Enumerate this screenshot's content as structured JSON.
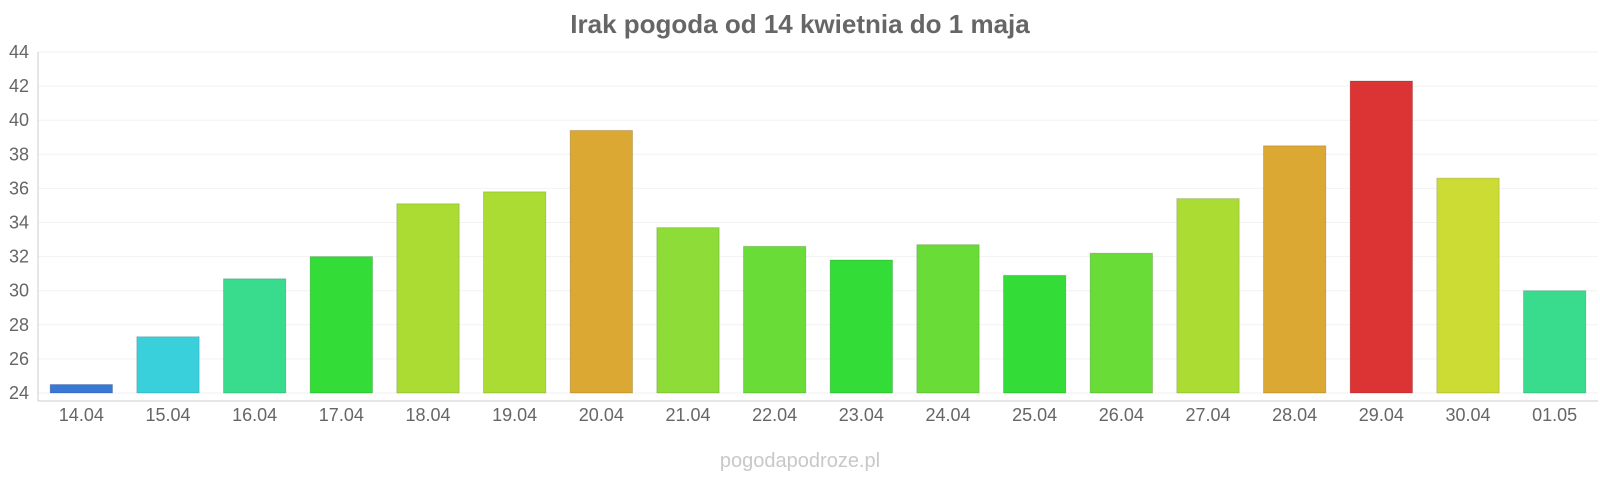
{
  "chart_data": {
    "type": "bar",
    "title": "Irak pogoda od 14 kwietnia do 1 maja",
    "xlabel": "",
    "ylabel": "",
    "categories": [
      "14.04",
      "15.04",
      "16.04",
      "17.04",
      "18.04",
      "19.04",
      "20.04",
      "21.04",
      "22.04",
      "23.04",
      "24.04",
      "25.04",
      "26.04",
      "27.04",
      "28.04",
      "29.04",
      "30.04",
      "01.05"
    ],
    "values": [
      24.5,
      27.3,
      30.7,
      32.0,
      35.1,
      35.8,
      39.4,
      33.7,
      32.6,
      31.8,
      32.7,
      30.9,
      32.2,
      35.4,
      38.5,
      42.3,
      36.6,
      30.0
    ],
    "colors": [
      "#3a78d6",
      "#39d0dc",
      "#38dc8c",
      "#34dc38",
      "#aadc34",
      "#aadc34",
      "#dba834",
      "#8ddc38",
      "#6adc38",
      "#34dc38",
      "#6adc38",
      "#34dc38",
      "#6adc38",
      "#aadc34",
      "#dba834",
      "#dc3434",
      "#cddc34",
      "#38dc8c"
    ],
    "ylim": [
      24,
      44
    ],
    "yticks": [
      24,
      26,
      28,
      30,
      32,
      34,
      36,
      38,
      40,
      42,
      44
    ],
    "grid": true,
    "legend": "none"
  },
  "source": "pogodapodroze.pl"
}
